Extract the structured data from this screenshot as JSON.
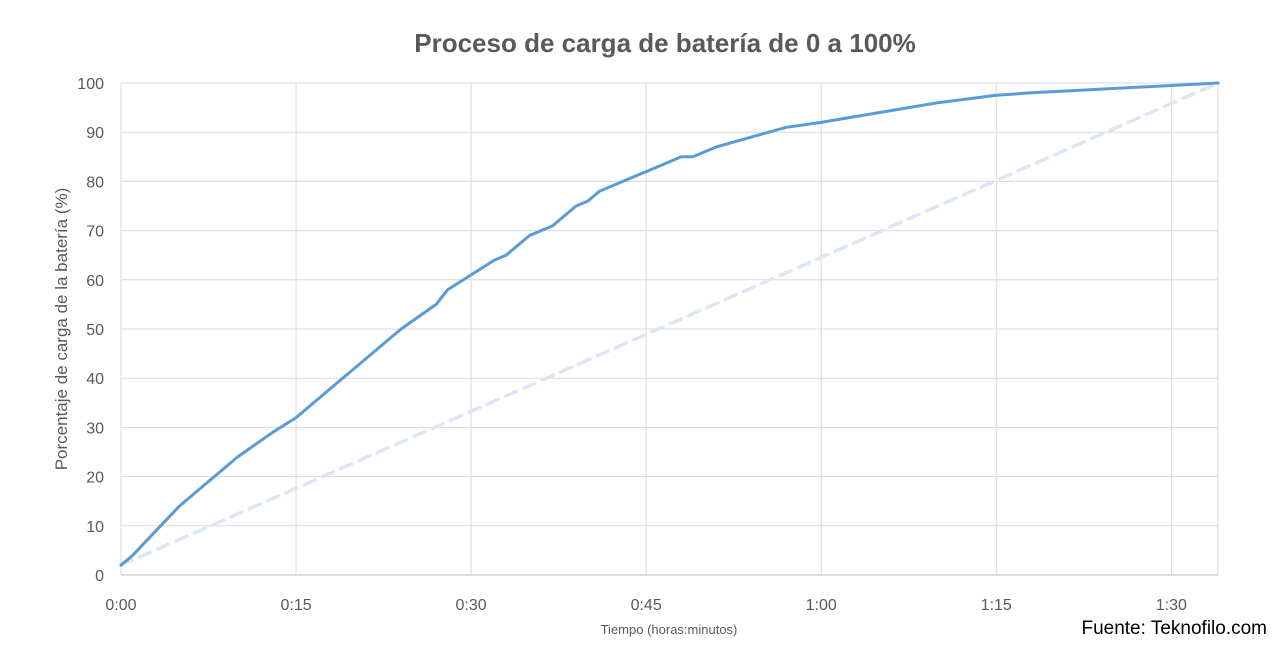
{
  "chart_data": {
    "type": "line",
    "title": "Proceso de carga de batería de 0 a 100%",
    "xlabel": "Tiempo (horas:minutos)",
    "ylabel": "Porcentaje de carga de la batería (%)",
    "x_ticks": [
      "0:00",
      "0:15",
      "0:30",
      "0:45",
      "1:00",
      "1:15",
      "1:30"
    ],
    "x_tick_minutes": [
      0,
      15,
      30,
      45,
      60,
      75,
      90
    ],
    "xlim": [
      0,
      94
    ],
    "ylim": [
      0,
      100
    ],
    "y_ticks": [
      0,
      10,
      20,
      30,
      40,
      50,
      60,
      70,
      80,
      90,
      100
    ],
    "grid": true,
    "series": [
      {
        "style": "solid",
        "color": "#5b9bd5",
        "x": [
          0,
          1,
          3,
          5,
          7,
          10,
          13,
          15,
          18,
          21,
          24,
          27,
          28,
          30,
          32,
          33,
          35,
          37,
          39,
          40,
          41,
          43,
          45,
          47,
          48,
          49,
          51,
          54,
          57,
          60,
          65,
          70,
          75,
          78,
          82,
          86,
          90,
          94
        ],
        "y": [
          2,
          4,
          9,
          14,
          18,
          24,
          29,
          32,
          38,
          44,
          50,
          55,
          58,
          61,
          64,
          65,
          69,
          71,
          75,
          76,
          78,
          80,
          82,
          84,
          85,
          85,
          87,
          89,
          91,
          92,
          94,
          96,
          97.5,
          98,
          98.5,
          99,
          99.5,
          100
        ]
      },
      {
        "style": "dashed",
        "color": "#dae7f6",
        "x": [
          0,
          94
        ],
        "y": [
          2,
          100
        ]
      }
    ]
  },
  "source": "Fuente: Teknofilo.com"
}
